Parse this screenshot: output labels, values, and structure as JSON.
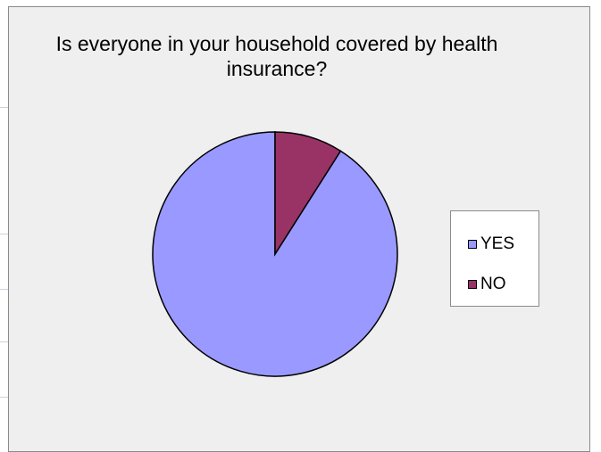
{
  "chart_data": {
    "type": "pie",
    "title": "Is everyone in your household covered by health insurance?",
    "categories": [
      "YES",
      "NO"
    ],
    "values": [
      91,
      9
    ],
    "colors": [
      "#9999ff",
      "#993366"
    ],
    "legend_position": "right"
  }
}
